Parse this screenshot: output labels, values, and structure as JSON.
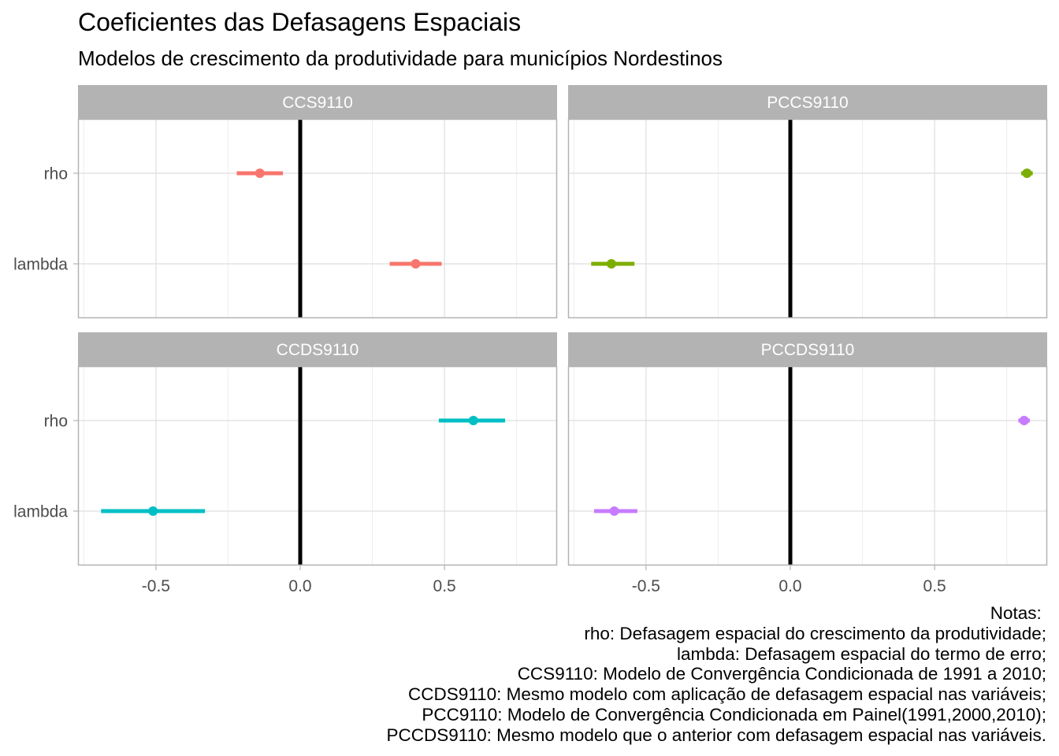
{
  "title": "Coeficientes das Defasagens Espaciais",
  "subtitle": "Modelos de crescimento da produtividade para municípios Nordestinos",
  "chart_data": {
    "type": "scatter",
    "subtype": "coefficient-plot-with-interval",
    "facets": [
      {
        "name": "CCS9110",
        "color": "#F8766D",
        "points": [
          {
            "term": "rho",
            "estimate": -0.14,
            "low": -0.22,
            "high": -0.06
          },
          {
            "term": "lambda",
            "estimate": 0.4,
            "low": 0.31,
            "high": 0.49
          }
        ]
      },
      {
        "name": "PCCS9110",
        "color": "#7CAE00",
        "points": [
          {
            "term": "rho",
            "estimate": 0.82,
            "low": 0.8,
            "high": 0.84
          },
          {
            "term": "lambda",
            "estimate": -0.62,
            "low": -0.69,
            "high": -0.54
          }
        ]
      },
      {
        "name": "CCDS9110",
        "color": "#00BFC4",
        "points": [
          {
            "term": "rho",
            "estimate": 0.6,
            "low": 0.48,
            "high": 0.71
          },
          {
            "term": "lambda",
            "estimate": -0.51,
            "low": -0.69,
            "high": -0.33
          }
        ]
      },
      {
        "name": "PCCDS9110",
        "color": "#C77CFF",
        "points": [
          {
            "term": "rho",
            "estimate": 0.81,
            "low": 0.79,
            "high": 0.83
          },
          {
            "term": "lambda",
            "estimate": -0.61,
            "low": -0.68,
            "high": -0.53
          }
        ]
      }
    ],
    "y_categories": [
      "rho",
      "lambda"
    ],
    "x_ticks": [
      "-0.5",
      "0.0",
      "0.5"
    ],
    "x_tick_values": [
      -0.5,
      0.0,
      0.5
    ],
    "xlim": [
      -0.77,
      0.89
    ],
    "reference_line": 0,
    "grid": true,
    "legend": "none"
  },
  "notes": [
    "Notas: ",
    "rho: Defasagem espacial do crescimento da produtividade;",
    "lambda: Defasagem espacial do termo de erro;",
    "CCS9110: Modelo de Convergência Condicionada de 1991 a 2010;",
    "CCDS9110: Mesmo modelo com aplicação de defasagem espacial nas variáveis;",
    "PCC9110: Modelo de Convergência Condicionada em Painel(1991,2000,2010);",
    "PCCDS9110: Mesmo modelo que o anterior com defasagem espacial nas variáveis."
  ]
}
